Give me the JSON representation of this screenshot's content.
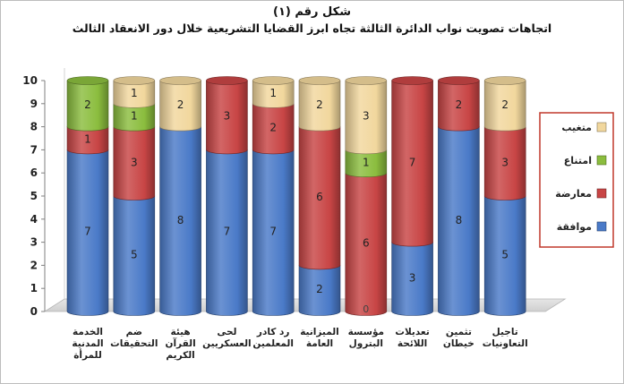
{
  "chart_data": {
    "type": "bar",
    "stacked": true,
    "title": "شكل رقم (١)",
    "subtitle": "اتجاهات تصويت نواب الدائرة الثالثة تجاه ابرز القضايا التشريعية خلال دور الانعقاد الثالث",
    "ylim": [
      0,
      10
    ],
    "yticks": [
      "0",
      "1",
      "2",
      "3",
      "4",
      "5",
      "6",
      "7",
      "8",
      "9",
      "10"
    ],
    "categories": [
      [
        "الخدمة",
        "المدنية",
        "للمرأة"
      ],
      [
        "ضم",
        "التحقيقات"
      ],
      [
        "هيئة",
        "القرآن",
        "الكريم"
      ],
      [
        "لحى",
        "العسكريين"
      ],
      [
        "رد كادر",
        "المعلمين"
      ],
      [
        "الميزانية",
        "العامة"
      ],
      [
        "مؤسسة",
        "البترول"
      ],
      [
        "تعديلات",
        "اللائحة"
      ],
      [
        "تثمين",
        "خيطان"
      ],
      [
        "تاجيل",
        "التعاونيات"
      ]
    ],
    "series": [
      {
        "name": "موافقة",
        "color": "#4a7ac8",
        "values": [
          7,
          5,
          8,
          7,
          7,
          2,
          0,
          3,
          8,
          5
        ]
      },
      {
        "name": "معارضة",
        "color": "#c84545",
        "values": [
          1,
          3,
          0,
          3,
          2,
          6,
          6,
          7,
          2,
          3
        ]
      },
      {
        "name": "امتناع",
        "color": "#8bbd3e",
        "values": [
          2,
          1,
          0,
          0,
          0,
          0,
          1,
          0,
          0,
          0
        ]
      },
      {
        "name": "متغيب",
        "color": "#f1d79d",
        "values": [
          0,
          1,
          2,
          0,
          1,
          2,
          3,
          0,
          0,
          2
        ]
      }
    ],
    "legend_order": [
      "متغيب",
      "امتناع",
      "معارضة",
      "موافقة"
    ],
    "legend_position": "right",
    "grid": false
  }
}
